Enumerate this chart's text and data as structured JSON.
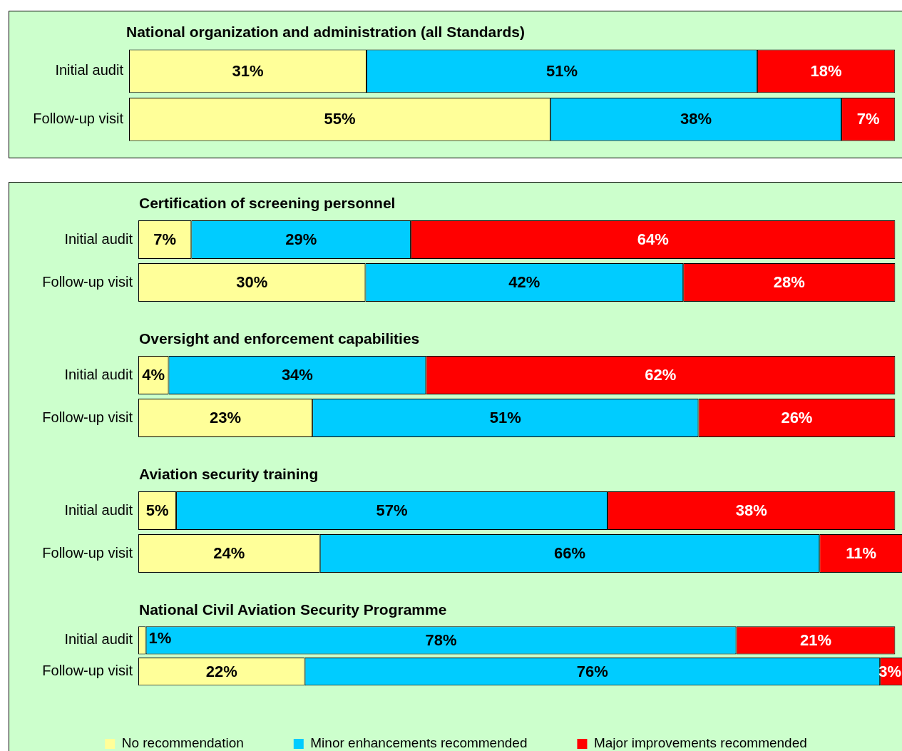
{
  "chart_data": [
    {
      "type": "bar",
      "orientation": "horizontal",
      "stacked": true,
      "title": "National organization and administration (all Standards)",
      "categories": [
        "Initial audit",
        "Follow-up visit"
      ],
      "xlim": [
        0,
        101
      ],
      "tick_labels": "y",
      "legend": false,
      "series": [
        {
          "color": "#ffff99",
          "values": [
            31,
            55
          ],
          "value_labels": [
            "31%",
            "55%"
          ]
        },
        {
          "color": "#00ccff",
          "values": [
            51,
            38
          ],
          "value_labels": [
            "51%",
            "38%"
          ]
        },
        {
          "color": "#ff0000",
          "values": [
            18,
            7
          ],
          "value_labels": [
            "18%",
            "7%"
          ]
        }
      ]
    },
    {
      "type": "bar",
      "orientation": "horizontal",
      "stacked": true,
      "title": "Certification of screening personnel",
      "categories": [
        "Initial audit",
        "Follow-up visit"
      ],
      "xlim": [
        0,
        101
      ],
      "tick_labels": "y",
      "legend": false,
      "series": [
        {
          "color": "#ffff99",
          "values": [
            7,
            30
          ],
          "value_labels": [
            "7%",
            "30%"
          ]
        },
        {
          "color": "#00ccff",
          "values": [
            29,
            42
          ],
          "value_labels": [
            "29%",
            "42%"
          ]
        },
        {
          "color": "#ff0000",
          "values": [
            64,
            28
          ],
          "value_labels": [
            "64%",
            "28%"
          ]
        }
      ]
    },
    {
      "type": "bar",
      "orientation": "horizontal",
      "stacked": true,
      "title": "Oversight and enforcement capabilities",
      "categories": [
        "Initial audit",
        "Follow-up visit"
      ],
      "xlim": [
        0,
        101
      ],
      "tick_labels": "y",
      "legend": false,
      "series": [
        {
          "color": "#ffff99",
          "values": [
            4,
            23
          ],
          "value_labels": [
            "4%",
            "23%"
          ]
        },
        {
          "color": "#00ccff",
          "values": [
            34,
            51
          ],
          "value_labels": [
            "34%",
            "51%"
          ]
        },
        {
          "color": "#ff0000",
          "values": [
            62,
            26
          ],
          "value_labels": [
            "62%",
            "26%"
          ]
        }
      ]
    },
    {
      "type": "bar",
      "orientation": "horizontal",
      "stacked": true,
      "title": "Aviation security training",
      "categories": [
        "Initial audit",
        "Follow-up visit"
      ],
      "xlim": [
        0,
        101
      ],
      "tick_labels": "y",
      "legend": false,
      "series": [
        {
          "color": "#ffff99",
          "values": [
            5,
            24
          ],
          "value_labels": [
            "5%",
            "24%"
          ]
        },
        {
          "color": "#00ccff",
          "values": [
            57,
            66
          ],
          "value_labels": [
            "57%",
            "66%"
          ]
        },
        {
          "color": "#ff0000",
          "values": [
            38,
            11
          ],
          "value_labels": [
            "38%",
            "11%"
          ]
        }
      ]
    },
    {
      "type": "bar",
      "orientation": "horizontal",
      "stacked": true,
      "title": "National Civil Aviation Security Programme",
      "categories": [
        "Initial audit",
        "Follow-up visit"
      ],
      "xlim": [
        0,
        101
      ],
      "tick_labels": "y",
      "legend": "bottom",
      "series": [
        {
          "name": "No recommendation",
          "color": "#ffff99",
          "values": [
            1,
            22
          ],
          "value_labels": [
            "1%",
            "22%"
          ]
        },
        {
          "name": "Minor enhancements recommended",
          "color": "#00ccff",
          "values": [
            78,
            76
          ],
          "value_labels": [
            "78%",
            "76%"
          ]
        },
        {
          "name": "Major improvements recommended",
          "color": "#ff0000",
          "values": [
            21,
            3
          ],
          "value_labels": [
            "21%",
            "3%"
          ]
        }
      ]
    }
  ]
}
